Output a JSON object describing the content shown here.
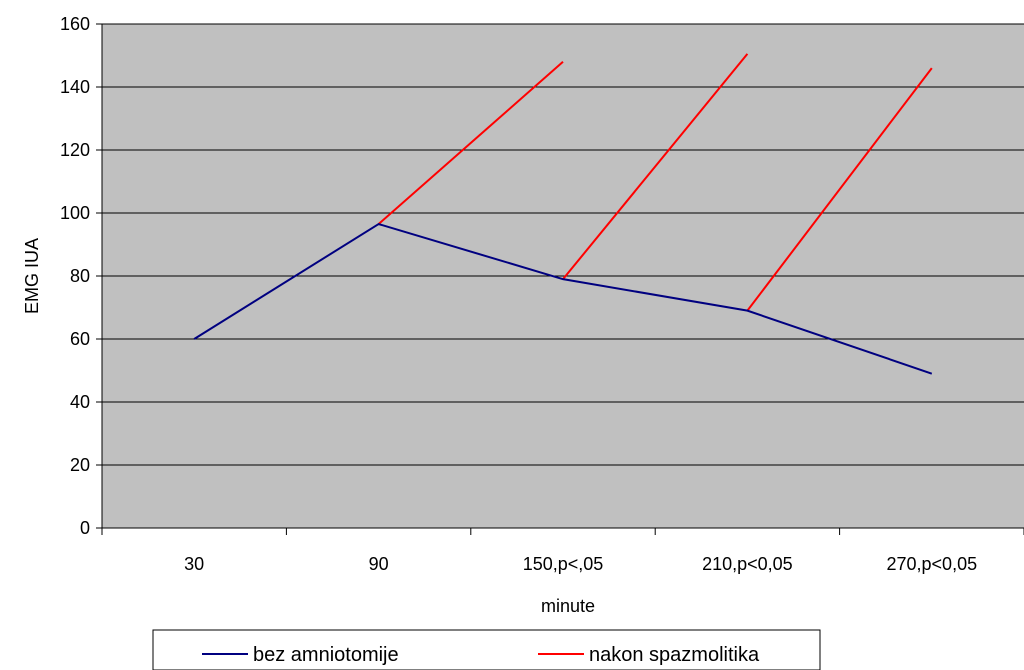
{
  "chart_data": {
    "type": "line",
    "title": "",
    "xlabel": "minute",
    "ylabel": "EMG IUA",
    "categories": [
      "30",
      "90",
      "150,p<,05",
      "210,p<0,05",
      "270,p<0,05"
    ],
    "ylim": [
      0,
      160
    ],
    "yticks": [
      0,
      20,
      40,
      60,
      80,
      100,
      120,
      140,
      160
    ],
    "grid": true,
    "plot_background": "#c0c0c0",
    "legend_position": "bottom",
    "series": [
      {
        "name": "bez amniotomije",
        "color": "#000080",
        "points": [
          [
            0,
            60
          ],
          [
            1,
            96.5
          ],
          [
            2,
            79
          ],
          [
            3,
            69
          ],
          [
            4,
            49
          ]
        ]
      }
    ],
    "segments": {
      "name": "nakon spazmolitika",
      "color": "#ff0000",
      "lines": [
        [
          [
            1,
            96.5
          ],
          [
            2,
            148
          ]
        ],
        [
          [
            2,
            79
          ],
          [
            3,
            150.5
          ]
        ],
        [
          [
            3,
            69
          ],
          [
            4,
            146
          ]
        ]
      ]
    }
  }
}
